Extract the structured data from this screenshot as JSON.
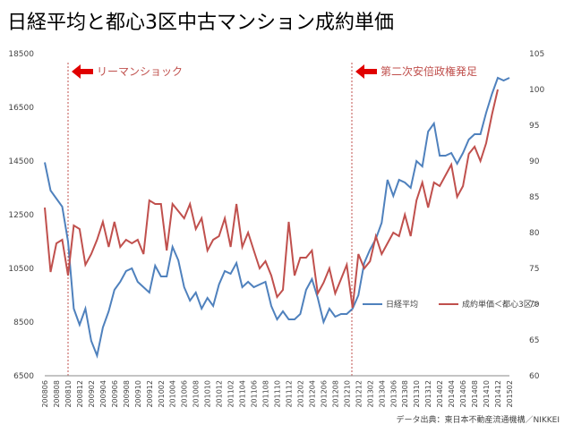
{
  "chart_data": {
    "type": "line",
    "title": "日経平均と都心3区中古マンション成約単価",
    "categories": [
      "200806",
      null,
      "200808",
      null,
      "200810",
      null,
      "200812",
      null,
      "200902",
      null,
      "200904",
      null,
      "200906",
      null,
      "200908",
      null,
      "200910",
      null,
      "200912",
      null,
      "201002",
      null,
      "201004",
      null,
      "201006",
      null,
      "201008",
      null,
      "201010",
      null,
      "201012",
      null,
      "201102",
      null,
      "201104",
      null,
      "201106",
      null,
      "201108",
      null,
      "201110",
      null,
      "201112",
      null,
      "201202",
      null,
      "201204",
      null,
      "201206",
      null,
      "201208",
      null,
      "201210",
      null,
      "201212",
      null,
      "201302",
      null,
      "201304",
      null,
      "201306",
      null,
      "201308",
      null,
      "201310",
      null,
      "201312",
      null,
      "201402",
      null,
      "201404",
      null,
      "201406",
      null,
      "201408",
      null,
      "201410",
      null,
      "201412",
      null,
      "201502"
    ],
    "series": [
      {
        "name": "日経平均",
        "color": "#4f81bd",
        "values": [
          14450,
          13400,
          13100,
          12800,
          11500,
          9000,
          8400,
          9000,
          7800,
          7250,
          8300,
          8900,
          9700,
          10000,
          10400,
          10500,
          10000,
          9800,
          9600,
          10600,
          10200,
          10200,
          11300,
          10800,
          9800,
          9300,
          9600,
          9000,
          9400,
          9100,
          9900,
          10400,
          10300,
          10700,
          9800,
          10000,
          9800,
          9900,
          10000,
          9100,
          8600,
          8900,
          8600,
          8600,
          8800,
          9700,
          10100,
          9400,
          8500,
          9000,
          8700,
          8800,
          8800,
          9000,
          9500,
          10700,
          11200,
          11600,
          12200,
          13800,
          13200,
          13800,
          13700,
          13500,
          14500,
          14300,
          15600,
          15900,
          14700,
          14700,
          14800,
          14400,
          14800,
          15300,
          15500,
          15500,
          16300,
          17000,
          17600,
          17500,
          17600
        ]
      },
      {
        "name": "成約単価＜都心3区＞",
        "color": "#c0504d",
        "axis": "y2",
        "values": [
          83.5,
          74.5,
          78.5,
          79,
          74,
          81,
          80.5,
          75.5,
          77,
          79,
          81.5,
          78,
          81.5,
          78,
          79,
          78.5,
          79,
          77,
          84.5,
          84,
          84,
          77.5,
          84,
          83,
          82,
          84,
          80.5,
          82,
          77.5,
          79,
          79.5,
          82,
          78,
          84,
          78,
          80,
          77.5,
          75,
          76,
          74,
          71,
          72,
          81.5,
          74,
          76.5,
          76.5,
          77.5,
          71.5,
          73,
          75,
          71.5,
          73.5,
          75.5,
          69.5,
          77,
          75,
          76,
          79.5,
          77,
          78.5,
          80,
          79.5,
          82.5,
          79.5,
          84.5,
          87,
          83.5,
          87,
          86.5,
          88,
          89.5,
          85,
          86.5,
          91,
          92,
          90,
          92.5,
          96.5,
          100,
          null,
          null
        ]
      }
    ],
    "ylim": [
      6500,
      18500
    ],
    "yticks": [
      6500,
      8500,
      10500,
      12500,
      14500,
      16500,
      18500
    ],
    "y2lim": [
      60,
      105
    ],
    "y2ticks": [
      60,
      65,
      70,
      75,
      80,
      85,
      90,
      95,
      100,
      105
    ],
    "annotations": [
      "リーマンショック",
      "第二次安倍政権発足"
    ],
    "source": "データ出典：東日本不動産流通機構／NIKKEI",
    "legend": "lower right"
  }
}
